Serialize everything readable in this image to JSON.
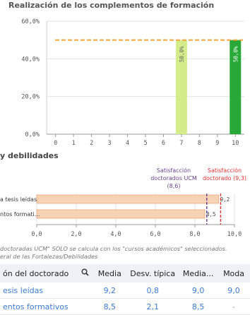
{
  "chart1": {
    "title": "Realización de los complementos de formación",
    "y_ticks": [
      "60,0%",
      "40,0%",
      "20,0%",
      "0,0%"
    ],
    "x_ticks": [
      "0",
      "1",
      "2",
      "3",
      "4",
      "5",
      "6",
      "7",
      "8",
      "9",
      "10"
    ],
    "colors": {
      "light_bar": "#d4ec8a",
      "dark_bar": "#27a837",
      "reference_line": "#f0a030"
    }
  },
  "chart_data": [
    {
      "type": "bar",
      "title": "Realización de los complementos de formación",
      "categories": [
        "0",
        "1",
        "2",
        "3",
        "4",
        "5",
        "6",
        "7",
        "8",
        "9",
        "10"
      ],
      "series": [
        {
          "name": "",
          "values": [
            0,
            0,
            0,
            0,
            0,
            0,
            0,
            50,
            0,
            0,
            50
          ]
        }
      ],
      "data_labels": [
        "",
        "",
        "",
        "",
        "",
        "",
        "",
        "50,0%",
        "",
        "",
        "50,0%"
      ],
      "reference_line": 50,
      "ylim": [
        0,
        60
      ],
      "y_ticks": [
        0,
        20,
        40,
        60
      ],
      "xlabel": "",
      "ylabel": "",
      "grid": "horizontal"
    },
    {
      "type": "bar",
      "orientation": "horizontal",
      "title": "y debilidades",
      "categories": [
        "a tesis leídas",
        "ntos formati..."
      ],
      "values": [
        9.2,
        8.5
      ],
      "value_labels": [
        "9,2",
        "8,5"
      ],
      "xlim": [
        0,
        10
      ],
      "x_ticks": [
        "0,0",
        "2,0",
        "4,0",
        "6,0",
        "8,0",
        "10,0"
      ],
      "reference_lines": [
        {
          "label_lines": [
            "Satisfacción",
            "doctorados UCM",
            "(8,6)"
          ],
          "value": 8.6,
          "color": "#6a3d8e"
        },
        {
          "label_lines": [
            "Satisfacción",
            "doctorado (9,3)"
          ],
          "value": 9.3,
          "color": "#e03030"
        }
      ]
    }
  ],
  "chart2": {
    "title": "y debilidades",
    "colors": {
      "bar_fill": "#f7d2b4",
      "bar_border": "#eaa779"
    }
  },
  "note": {
    "line1": "doctoradas UCM\" SOLO se calcula con los \"cursos académicos\" seleccionados.",
    "line2": "eral de las Fortalezas/Debilidades"
  },
  "table": {
    "headers": [
      "ón del doctorado",
      "Media",
      "Desv. típica",
      "Media...",
      "Moda"
    ],
    "search_icon": "search-icon",
    "rows": [
      {
        "name": "esis leídas",
        "media": "9,2",
        "desv": "0,8",
        "media2": "9,0",
        "moda": "9,0"
      },
      {
        "name": "entos formativos",
        "media": "8,5",
        "desv": "2,1",
        "media2": "8,5",
        "moda": "-"
      }
    ]
  }
}
